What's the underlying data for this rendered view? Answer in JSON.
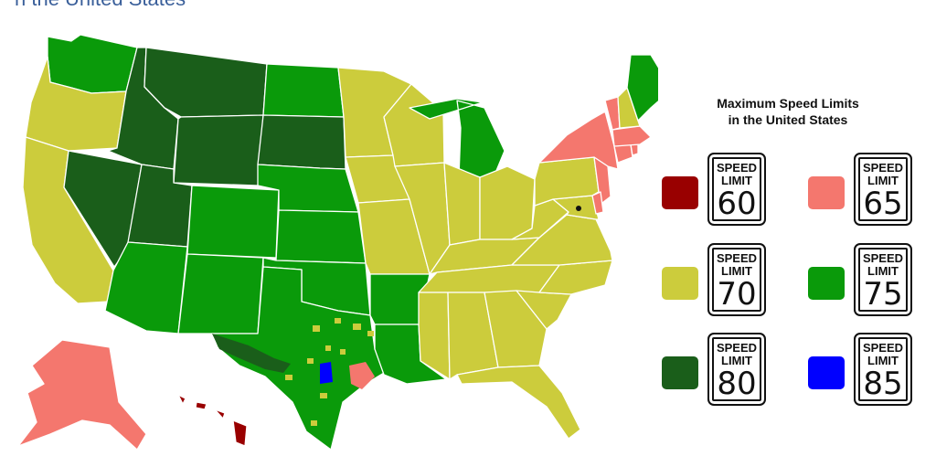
{
  "header": {
    "title_fragment": "n the United States"
  },
  "legend": {
    "title_line1": "Maximum Speed Limits",
    "title_line2": "in the United States",
    "sign_word_top": "SPEED",
    "sign_word_bottom": "LIMIT",
    "items": [
      {
        "value": "60",
        "color": "#990000"
      },
      {
        "value": "65",
        "color": "#f4776e"
      },
      {
        "value": "70",
        "color": "#cccc3c"
      },
      {
        "value": "75",
        "color": "#0a9a0a"
      },
      {
        "value": "80",
        "color": "#1a5e1a"
      },
      {
        "value": "85",
        "color": "#0000ff"
      }
    ]
  },
  "map": {
    "state_speed_limits": {
      "WA": 75,
      "OR": 70,
      "CA": 70,
      "NV": 80,
      "ID": 80,
      "MT": 80,
      "WY": 80,
      "UT": 80,
      "AZ": 75,
      "CO": 75,
      "NM": 75,
      "ND": 75,
      "SD": 80,
      "NE": 75,
      "KS": 75,
      "OK": 75,
      "TX": 75,
      "MN": 70,
      "IA": 70,
      "MO": 70,
      "AR": 75,
      "LA": 75,
      "WI": 70,
      "IL": 70,
      "MI": 75,
      "IN": 70,
      "OH": 70,
      "KY": 70,
      "TN": 70,
      "MS": 70,
      "AL": 70,
      "GA": 70,
      "FL": 70,
      "SC": 70,
      "NC": 70,
      "VA": 70,
      "WV": 70,
      "PA": 70,
      "NY": 65,
      "VT": 65,
      "NH": 70,
      "ME": 75,
      "MA": 65,
      "CT": 65,
      "RI": 65,
      "NJ": 65,
      "DE": 65,
      "MD": 70,
      "AK": 65,
      "HI": 60
    }
  }
}
